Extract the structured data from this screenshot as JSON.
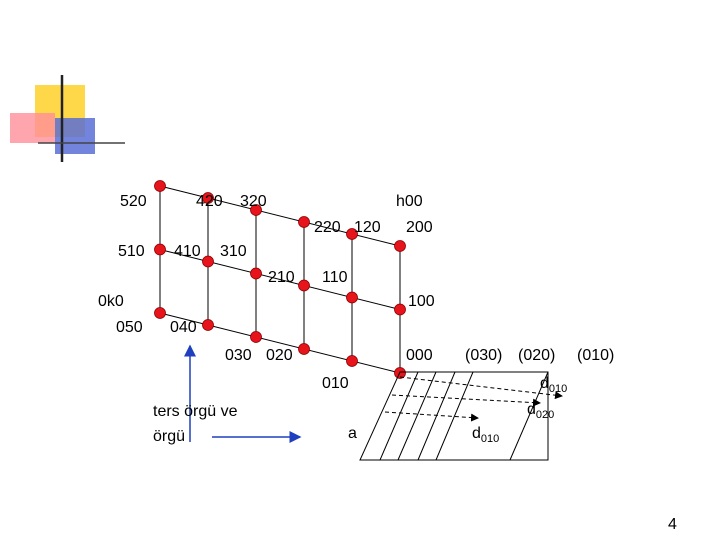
{
  "lattice_labels": [
    "520",
    "420",
    "320",
    "h00",
    "220",
    "120",
    "200",
    "510",
    "410",
    "310",
    "210",
    "110",
    "0k0",
    "100",
    "050",
    "040",
    "030",
    "020",
    "000",
    "010"
  ],
  "planes": [
    "(030)",
    "(020)",
    "(010)"
  ],
  "spacings": [
    {
      "main": "d",
      "sub": "010"
    },
    {
      "main": "d",
      "sub": "020"
    },
    {
      "main": "d",
      "sub": "010"
    }
  ],
  "caption": [
    "ters örgü ve",
    "örgü"
  ],
  "axis_label": "a",
  "page_number": "4"
}
